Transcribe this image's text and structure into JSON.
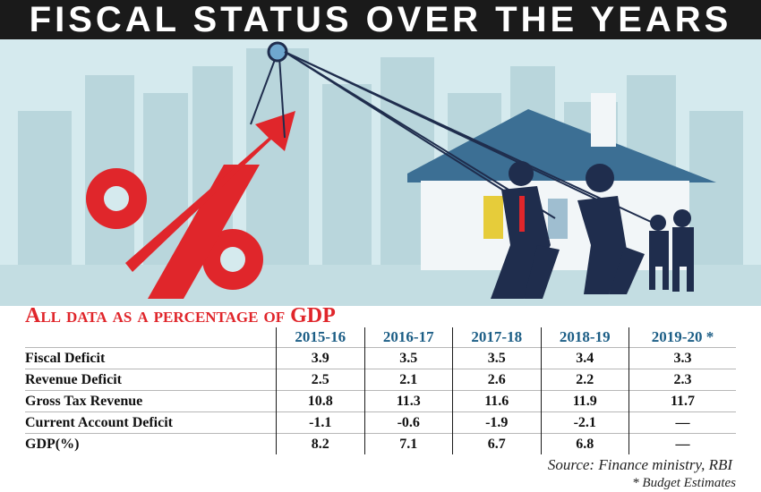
{
  "title": "FISCAL STATUS OVER THE YEARS",
  "illustration": {
    "symbol": "%"
  },
  "chart_data": {
    "type": "table",
    "title": "All data as a percentage of GDP",
    "columns": [
      "2015-16",
      "2016-17",
      "2017-18",
      "2018-19",
      "2019-20 *"
    ],
    "rows": [
      {
        "label": "Fiscal Deficit",
        "values": [
          "3.9",
          "3.5",
          "3.5",
          "3.4",
          "3.3"
        ]
      },
      {
        "label": "Revenue Deficit",
        "values": [
          "2.5",
          "2.1",
          "2.6",
          "2.2",
          "2.3"
        ]
      },
      {
        "label": "Gross Tax Revenue",
        "values": [
          "10.8",
          "11.3",
          "11.6",
          "11.9",
          "11.7"
        ]
      },
      {
        "label": "Current Account Deficit",
        "values": [
          "-1.1",
          "-0.6",
          "-1.9",
          "-2.1",
          "—"
        ]
      },
      {
        "label": "GDP(%)",
        "values": [
          "8.2",
          "7.1",
          "6.7",
          "6.8",
          "—"
        ]
      }
    ]
  },
  "source": "Source: Finance ministry, RBI",
  "note": "* Budget Estimates",
  "colors": {
    "accent_red": "#e0262b",
    "header_blue": "#1c5e86",
    "sky": "#d5eaee",
    "silhouette": "#1f2d4d"
  }
}
